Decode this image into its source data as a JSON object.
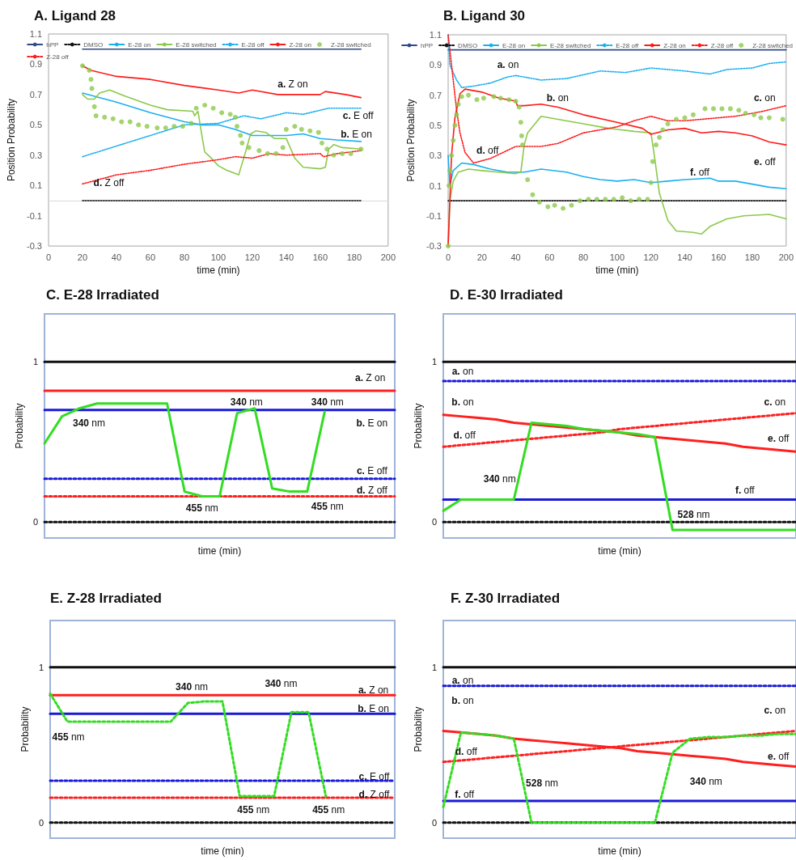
{
  "chart_data": [
    {
      "type": "line",
      "title": "A. Ligand 28",
      "xlabel": "time (min)",
      "ylabel": "Position Probability",
      "xlim": [
        0,
        200
      ],
      "xticks": [
        0,
        20,
        40,
        60,
        80,
        100,
        120,
        140,
        160,
        180,
        200
      ],
      "ylim": [
        -0.3,
        1.1
      ],
      "yticks": [
        -0.3,
        -0.1,
        0.1,
        0.3,
        0.5,
        0.7,
        0.9,
        1.1
      ],
      "legend": "top",
      "series": [
        {
          "name": "hPP",
          "color": "#2e4a87",
          "line_style": "solid",
          "x": [
            20,
            184
          ],
          "values": [
            1.0,
            1.0
          ]
        },
        {
          "name": "DMSO",
          "color": "#111111",
          "line_style": "dotted",
          "x": [
            20,
            184
          ],
          "values": [
            0,
            0
          ]
        },
        {
          "name": "E-28 on",
          "color": "#1ab0f0",
          "line_style": "solid",
          "x": [
            20,
            40,
            60,
            80,
            90,
            100,
            110,
            120,
            140,
            150,
            160,
            170,
            184
          ],
          "values": [
            0.71,
            0.65,
            0.58,
            0.52,
            0.5,
            0.5,
            0.47,
            0.43,
            0.43,
            0.44,
            0.41,
            0.4,
            0.39
          ]
        },
        {
          "name": "E-28 switched",
          "color": "#8cc94a",
          "line_style": "solid",
          "x": [
            20,
            23,
            27,
            30,
            36,
            45,
            60,
            70,
            85,
            86,
            88,
            90,
            92,
            95,
            100,
            105,
            112,
            116,
            119,
            122,
            128,
            133,
            140,
            145,
            150,
            160,
            163,
            165,
            168,
            173,
            184
          ],
          "values": [
            0.7,
            0.67,
            0.67,
            0.71,
            0.73,
            0.69,
            0.63,
            0.6,
            0.59,
            0.56,
            0.59,
            0.45,
            0.32,
            0.29,
            0.23,
            0.2,
            0.17,
            0.32,
            0.44,
            0.46,
            0.45,
            0.41,
            0.41,
            0.28,
            0.22,
            0.21,
            0.22,
            0.34,
            0.37,
            0.35,
            0.34
          ]
        },
        {
          "name": "E-28 off",
          "color": "#1ab0f0",
          "line_style": "dotted",
          "x": [
            20,
            40,
            60,
            80,
            100,
            115,
            125,
            140,
            150,
            165,
            184
          ],
          "values": [
            0.29,
            0.36,
            0.43,
            0.5,
            0.51,
            0.56,
            0.54,
            0.58,
            0.57,
            0.61,
            0.61
          ]
        },
        {
          "name": "Z-28 on",
          "color": "#ff1a1a",
          "line_style": "solid",
          "x": [
            20,
            25,
            40,
            60,
            80,
            100,
            112,
            120,
            135,
            160,
            163,
            175,
            184
          ],
          "values": [
            0.89,
            0.86,
            0.82,
            0.8,
            0.76,
            0.73,
            0.71,
            0.73,
            0.7,
            0.7,
            0.72,
            0.7,
            0.68
          ]
        },
        {
          "name": "Z-28 switched",
          "color": "#8cc94a",
          "type": "scatter",
          "marker": "circle",
          "x": [
            20,
            24,
            25,
            25.5,
            27,
            28,
            33,
            38,
            43,
            48,
            53,
            58,
            64,
            69,
            74,
            79,
            84,
            87,
            92,
            97,
            102,
            107,
            110,
            111,
            113,
            114,
            118,
            124,
            129,
            134,
            138,
            140,
            145,
            149,
            154,
            159,
            161,
            164,
            168,
            173,
            178,
            184
          ],
          "values": [
            0.89,
            0.86,
            0.8,
            0.74,
            0.62,
            0.56,
            0.55,
            0.54,
            0.52,
            0.52,
            0.5,
            0.49,
            0.48,
            0.48,
            0.49,
            0.49,
            0.51,
            0.61,
            0.63,
            0.61,
            0.58,
            0.57,
            0.55,
            0.49,
            0.43,
            0.38,
            0.35,
            0.33,
            0.31,
            0.31,
            0.35,
            0.47,
            0.49,
            0.47,
            0.46,
            0.45,
            0.38,
            0.34,
            0.3,
            0.31,
            0.31,
            0.34
          ]
        },
        {
          "name": "Z-28 off",
          "color": "#ff1a1a",
          "line_style": "dotted",
          "x": [
            20,
            40,
            60,
            80,
            100,
            110,
            120,
            130,
            140,
            160,
            162,
            170,
            184
          ],
          "values": [
            0.11,
            0.17,
            0.2,
            0.24,
            0.27,
            0.29,
            0.28,
            0.31,
            0.3,
            0.31,
            0.29,
            0.31,
            0.33
          ]
        }
      ],
      "annotations": [
        "a. Z on",
        "c. E off",
        "b. E on",
        "d. Z off"
      ]
    },
    {
      "type": "line",
      "title": "B. Ligand 30",
      "xlabel": "time (min)",
      "ylabel": "Position Probability",
      "xlim": [
        0,
        200
      ],
      "xticks": [
        0,
        20,
        40,
        60,
        80,
        100,
        120,
        140,
        160,
        180,
        200
      ],
      "ylim": [
        -0.3,
        1.1
      ],
      "yticks": [
        -0.3,
        -0.1,
        0.1,
        0.3,
        0.5,
        0.7,
        0.9,
        1.1
      ],
      "legend": "top",
      "series": [
        {
          "name": "hPP",
          "color": "#2e4a87",
          "line_style": "solid",
          "x": [
            0,
            200
          ],
          "values": [
            1.0,
            1.0
          ]
        },
        {
          "name": "DMSO",
          "color": "#111111",
          "line_style": "dotted",
          "x": [
            0,
            200
          ],
          "values": [
            0,
            0
          ]
        },
        {
          "name": "E-28 on",
          "color": "#1ab0f0",
          "line_style": "solid",
          "x": [
            0,
            1,
            3,
            8,
            15,
            25,
            35,
            45,
            55,
            70,
            80,
            90,
            100,
            110,
            120,
            130,
            140,
            155,
            160,
            170,
            180,
            190,
            200
          ],
          "values": [
            0.3,
            0.1,
            0.2,
            0.25,
            0.24,
            0.21,
            0.19,
            0.19,
            0.21,
            0.19,
            0.16,
            0.14,
            0.13,
            0.14,
            0.12,
            0.13,
            0.14,
            0.15,
            0.13,
            0.13,
            0.11,
            0.09,
            0.08
          ]
        },
        {
          "name": "E-28 switched",
          "color": "#8cc94a",
          "line_style": "solid",
          "x": [
            0,
            1,
            3,
            6,
            12,
            20,
            30,
            40,
            43,
            45,
            47,
            55,
            65,
            80,
            95,
            110,
            120,
            122,
            125,
            130,
            135,
            145,
            150,
            155,
            165,
            175,
            190,
            200
          ],
          "values": [
            -0.3,
            0,
            0.13,
            0.19,
            0.21,
            0.2,
            0.19,
            0.18,
            0.19,
            0.37,
            0.45,
            0.56,
            0.54,
            0.51,
            0.48,
            0.46,
            0.45,
            0.3,
            0.05,
            -0.13,
            -0.2,
            -0.21,
            -0.22,
            -0.17,
            -0.12,
            -0.1,
            -0.09,
            -0.12
          ]
        },
        {
          "name": "E-28 off",
          "color": "#1ab0f0",
          "line_style": "dotted",
          "x": [
            0,
            1,
            5,
            8,
            15,
            25,
            35,
            40,
            55,
            70,
            90,
            105,
            120,
            140,
            155,
            165,
            180,
            190,
            200
          ],
          "values": [
            1.1,
            0.9,
            0.8,
            0.75,
            0.76,
            0.78,
            0.82,
            0.83,
            0.8,
            0.81,
            0.86,
            0.85,
            0.88,
            0.86,
            0.84,
            0.87,
            0.88,
            0.91,
            0.92
          ]
        },
        {
          "name": "Z-28 on",
          "color": "#ff1a1a",
          "line_style": "solid",
          "x": [
            0,
            2,
            4,
            7,
            10,
            20,
            30,
            40,
            41,
            45,
            55,
            65,
            80,
            100,
            115,
            120,
            130,
            140,
            150,
            160,
            170,
            180,
            190,
            200
          ],
          "values": [
            -0.3,
            0.3,
            0.55,
            0.71,
            0.74,
            0.72,
            0.68,
            0.66,
            0.63,
            0.63,
            0.64,
            0.62,
            0.57,
            0.52,
            0.48,
            0.44,
            0.47,
            0.48,
            0.45,
            0.46,
            0.45,
            0.43,
            0.39,
            0.37
          ]
        },
        {
          "name": "Z-28 off",
          "color": "#ff1a1a",
          "line_style": "dotted",
          "x": [
            0,
            2,
            5,
            7,
            10,
            15,
            25,
            40,
            55,
            65,
            80,
            100,
            110,
            120,
            130,
            140,
            160,
            170,
            185,
            200
          ],
          "values": [
            1.1,
            0.9,
            0.6,
            0.45,
            0.32,
            0.25,
            0.28,
            0.36,
            0.36,
            0.38,
            0.45,
            0.49,
            0.53,
            0.56,
            0.53,
            0.53,
            0.55,
            0.56,
            0.59,
            0.63
          ]
        },
        {
          "name": "Z-28 switched",
          "color": "#8cc94a",
          "type": "scatter",
          "marker": "circle",
          "x": [
            0,
            0.5,
            1,
            2,
            3,
            4,
            5,
            6,
            8,
            12,
            17,
            21,
            27,
            31,
            36,
            40,
            42,
            43,
            43.5,
            44,
            47,
            50,
            54,
            59,
            63,
            68,
            73,
            78,
            83,
            88,
            93,
            98,
            103,
            108,
            113,
            118,
            120,
            121,
            123,
            125,
            127,
            130,
            135,
            140,
            145,
            152,
            157,
            162,
            167,
            172,
            176,
            181,
            185,
            190,
            198
          ],
          "values": [
            -0.3,
            0.1,
            0.2,
            0.3,
            0.4,
            0.5,
            0.57,
            0.64,
            0.69,
            0.7,
            0.67,
            0.68,
            0.69,
            0.68,
            0.67,
            0.66,
            0.62,
            0.52,
            0.43,
            0.37,
            0.14,
            0.04,
            -0.01,
            -0.04,
            -0.03,
            -0.05,
            -0.03,
            0,
            0.01,
            0.01,
            0.01,
            0.01,
            0.02,
            0,
            0.01,
            0.01,
            0.12,
            0.26,
            0.37,
            0.42,
            0.47,
            0.51,
            0.54,
            0.55,
            0.57,
            0.61,
            0.61,
            0.61,
            0.61,
            0.6,
            0.58,
            0.57,
            0.55,
            0.55,
            0.54
          ]
        }
      ],
      "annotations": [
        "a. on",
        "b. on",
        "c. on",
        "d. off",
        "e. off",
        "f. off"
      ]
    },
    {
      "type": "line",
      "title": "C. E-28 Irradiated",
      "xlabel": "time (min)",
      "ylabel": "Probability",
      "categories": [
        null,
        null,
        null,
        null,
        null,
        null,
        null,
        null,
        null,
        null,
        null,
        null,
        null,
        null,
        null,
        null,
        null,
        null,
        null,
        null,
        null
      ],
      "ylim": [
        -0.1,
        1.3
      ],
      "yticks": [
        0,
        1
      ],
      "tick_labels": "y",
      "series": [
        {
          "color": "#111111",
          "line_style": "solid",
          "values": [
            1,
            1,
            1,
            1,
            1,
            1,
            1,
            1,
            1,
            1,
            1,
            1,
            1,
            1,
            1,
            1,
            1,
            1,
            1,
            1,
            1
          ]
        },
        {
          "color": "#ff1f1f",
          "line_style": "solid",
          "values": [
            0.82,
            0.82,
            0.82,
            0.82,
            0.82,
            0.82,
            0.82,
            0.82,
            0.82,
            0.82,
            0.82,
            0.82,
            0.82,
            0.82,
            0.82,
            0.82,
            0.82,
            0.82,
            0.82,
            0.82,
            0.82
          ]
        },
        {
          "color": "#1a1ad9",
          "line_style": "solid",
          "values": [
            0.7,
            0.7,
            0.7,
            0.7,
            0.7,
            0.7,
            0.7,
            0.7,
            0.7,
            0.7,
            0.7,
            0.7,
            0.7,
            0.7,
            0.7,
            0.7,
            0.7,
            0.7,
            0.7,
            0.7,
            0.7
          ]
        },
        {
          "color": "#1a1ad9",
          "line_style": "dotted",
          "values": [
            0.27,
            0.27,
            0.27,
            0.27,
            0.27,
            0.27,
            0.27,
            0.27,
            0.27,
            0.27,
            0.27,
            0.27,
            0.27,
            0.27,
            0.27,
            0.27,
            0.27,
            0.27,
            0.27,
            0.27,
            0.27
          ]
        },
        {
          "color": "#ff1f1f",
          "line_style": "dotted",
          "values": [
            0.16,
            0.16,
            0.16,
            0.16,
            0.16,
            0.16,
            0.16,
            0.16,
            0.16,
            0.16,
            0.16,
            0.16,
            0.16,
            0.16,
            0.16,
            0.16,
            0.16,
            0.16,
            0.16,
            0.16,
            0.16
          ]
        },
        {
          "color": "#111111",
          "line_style": "dotted",
          "values": [
            0,
            0,
            0,
            0,
            0,
            0,
            0,
            0,
            0,
            0,
            0,
            0,
            0,
            0,
            0,
            0,
            0,
            0,
            0,
            0,
            0
          ]
        },
        {
          "color": "#33dd22",
          "line_style": "solid",
          "values": [
            0.49,
            0.66,
            0.71,
            0.74,
            0.74,
            0.74,
            0.74,
            0.74,
            0.19,
            0.16,
            0.16,
            0.68,
            0.71,
            0.21,
            0.19,
            0.19,
            0.69,
            null,
            null,
            null,
            null
          ]
        }
      ],
      "annotations": [
        "340 nm",
        "340 nm",
        "340 nm",
        "455 nm",
        "455 nm",
        "a. Z on",
        "b. E on",
        "c. E off",
        "d. Z off"
      ]
    },
    {
      "type": "line",
      "title": "D. E-30 Irradiated",
      "xlabel": "time (min)",
      "ylabel": "Probability",
      "categories": [
        null,
        null,
        null,
        null,
        null,
        null,
        null,
        null,
        null,
        null,
        null,
        null,
        null,
        null,
        null,
        null,
        null,
        null,
        null,
        null,
        null
      ],
      "ylim": [
        -0.1,
        1.3
      ],
      "yticks": [
        0,
        1
      ],
      "tick_labels": "y",
      "series": [
        {
          "color": "#111111",
          "line_style": "solid",
          "values": [
            1,
            1,
            1,
            1,
            1,
            1,
            1,
            1,
            1,
            1,
            1,
            1,
            1,
            1,
            1,
            1,
            1,
            1,
            1,
            1,
            1
          ]
        },
        {
          "color": "#1a1ad9",
          "line_style": "dotted",
          "values": [
            0.88,
            0.88,
            0.88,
            0.88,
            0.88,
            0.88,
            0.88,
            0.88,
            0.88,
            0.88,
            0.88,
            0.88,
            0.88,
            0.88,
            0.88,
            0.88,
            0.88,
            0.88,
            0.88,
            0.88,
            0.88
          ]
        },
        {
          "color": "#ff1f1f",
          "line_style": "solid",
          "values": [
            0.67,
            0.66,
            0.65,
            0.64,
            0.62,
            0.61,
            0.6,
            0.59,
            0.58,
            0.57,
            0.56,
            0.54,
            0.53,
            0.52,
            0.51,
            0.5,
            0.49,
            0.47,
            0.46,
            0.45,
            0.44
          ]
        },
        {
          "color": "#ff1f1f",
          "line_style": "dotted",
          "values": [
            0.47,
            0.48,
            0.49,
            0.5,
            0.51,
            0.52,
            0.53,
            0.54,
            0.55,
            0.56,
            0.58,
            0.59,
            0.6,
            0.61,
            0.62,
            0.63,
            0.64,
            0.65,
            0.66,
            0.67,
            0.68
          ]
        },
        {
          "color": "#1a1ad9",
          "line_style": "solid",
          "values": [
            0.14,
            0.14,
            0.14,
            0.14,
            0.14,
            0.14,
            0.14,
            0.14,
            0.14,
            0.14,
            0.14,
            0.14,
            0.14,
            0.14,
            0.14,
            0.14,
            0.14,
            0.14,
            0.14,
            0.14,
            0.14
          ]
        },
        {
          "color": "#111111",
          "line_style": "dotted",
          "values": [
            0,
            0,
            0,
            0,
            0,
            0,
            0,
            0,
            0,
            0,
            0,
            0,
            0,
            0,
            0,
            0,
            0,
            0,
            0,
            0,
            0
          ]
        },
        {
          "color": "#33dd22",
          "line_style": "solid",
          "values": [
            0.07,
            0.14,
            0.14,
            0.14,
            0.14,
            0.62,
            0.61,
            0.6,
            0.58,
            0.57,
            0.56,
            0.55,
            0.53,
            -0.05,
            -0.05,
            -0.05,
            -0.05,
            -0.05,
            -0.05,
            -0.05,
            -0.05
          ]
        }
      ],
      "annotations": [
        "a. on",
        "b. on",
        "c. on",
        "d. off",
        "e. off",
        "f. off",
        "340 nm",
        "528 nm"
      ]
    },
    {
      "type": "line",
      "title": "E. Z-28 Irradiated",
      "xlabel": "time (min)",
      "ylabel": "Probability",
      "categories": [
        null,
        null,
        null,
        null,
        null,
        null,
        null,
        null,
        null,
        null,
        null,
        null,
        null,
        null,
        null,
        null,
        null,
        null,
        null,
        null,
        null
      ],
      "ylim": [
        -0.1,
        1.3
      ],
      "yticks": [
        0,
        1
      ],
      "tick_labels": "y",
      "series": [
        {
          "color": "#111111",
          "line_style": "solid",
          "values": [
            1,
            1,
            1,
            1,
            1,
            1,
            1,
            1,
            1,
            1,
            1,
            1,
            1,
            1,
            1,
            1,
            1,
            1,
            1,
            1,
            1
          ]
        },
        {
          "color": "#ff1f1f",
          "line_style": "solid",
          "values": [
            0.82,
            0.82,
            0.82,
            0.82,
            0.82,
            0.82,
            0.82,
            0.82,
            0.82,
            0.82,
            0.82,
            0.82,
            0.82,
            0.82,
            0.82,
            0.82,
            0.82,
            0.82,
            0.82,
            0.82,
            0.82
          ]
        },
        {
          "color": "#1a1ad9",
          "line_style": "solid",
          "values": [
            0.7,
            0.7,
            0.7,
            0.7,
            0.7,
            0.7,
            0.7,
            0.7,
            0.7,
            0.7,
            0.7,
            0.7,
            0.7,
            0.7,
            0.7,
            0.7,
            0.7,
            0.7,
            0.7,
            0.7,
            0.7
          ]
        },
        {
          "color": "#1a1ad9",
          "line_style": "dotted",
          "values": [
            0.27,
            0.27,
            0.27,
            0.27,
            0.27,
            0.27,
            0.27,
            0.27,
            0.27,
            0.27,
            0.27,
            0.27,
            0.27,
            0.27,
            0.27,
            0.27,
            0.27,
            0.27,
            0.27,
            0.27,
            0.27
          ]
        },
        {
          "color": "#ff1f1f",
          "line_style": "dotted",
          "values": [
            0.16,
            0.16,
            0.16,
            0.16,
            0.16,
            0.16,
            0.16,
            0.16,
            0.16,
            0.16,
            0.16,
            0.16,
            0.16,
            0.16,
            0.16,
            0.16,
            0.16,
            0.16,
            0.16,
            0.16,
            0.16
          ]
        },
        {
          "color": "#111111",
          "line_style": "dotted",
          "values": [
            0,
            0,
            0,
            0,
            0,
            0,
            0,
            0,
            0,
            0,
            0,
            0,
            0,
            0,
            0,
            0,
            0,
            0,
            0,
            0,
            0
          ]
        },
        {
          "color": "#33dd22",
          "line_style": "dotted",
          "values": [
            0.83,
            0.65,
            0.65,
            0.65,
            0.65,
            0.65,
            0.65,
            0.65,
            0.77,
            0.78,
            0.78,
            0.17,
            0.17,
            0.17,
            0.71,
            0.71,
            0.17,
            null,
            null,
            null,
            null
          ]
        }
      ],
      "annotations": [
        "340 nm",
        "340 nm",
        "455 nm",
        "455 nm",
        "455 nm",
        "a. Z on",
        "b. E on",
        "c. E off",
        "d. Z off"
      ]
    },
    {
      "type": "line",
      "title": "F. Z-30 Irradiated",
      "xlabel": "time (min)",
      "ylabel": "Probability",
      "categories": [
        null,
        null,
        null,
        null,
        null,
        null,
        null,
        null,
        null,
        null,
        null,
        null,
        null,
        null,
        null,
        null,
        null,
        null,
        null,
        null,
        null
      ],
      "ylim": [
        -0.1,
        1.3
      ],
      "yticks": [
        0,
        1
      ],
      "tick_labels": "y",
      "series": [
        {
          "color": "#111111",
          "line_style": "solid",
          "values": [
            1,
            1,
            1,
            1,
            1,
            1,
            1,
            1,
            1,
            1,
            1,
            1,
            1,
            1,
            1,
            1,
            1,
            1,
            1,
            1,
            1
          ]
        },
        {
          "color": "#1a1ad9",
          "line_style": "dotted",
          "values": [
            0.88,
            0.88,
            0.88,
            0.88,
            0.88,
            0.88,
            0.88,
            0.88,
            0.88,
            0.88,
            0.88,
            0.88,
            0.88,
            0.88,
            0.88,
            0.88,
            0.88,
            0.88,
            0.88,
            0.88,
            0.88
          ]
        },
        {
          "color": "#ff1f1f",
          "line_style": "solid",
          "values": [
            0.59,
            0.58,
            0.57,
            0.56,
            0.54,
            0.53,
            0.52,
            0.51,
            0.5,
            0.49,
            0.48,
            0.46,
            0.45,
            0.44,
            0.43,
            0.42,
            0.41,
            0.39,
            0.38,
            0.37,
            0.36
          ]
        },
        {
          "color": "#ff1f1f",
          "line_style": "dotted",
          "values": [
            0.39,
            0.4,
            0.41,
            0.42,
            0.43,
            0.44,
            0.45,
            0.46,
            0.47,
            0.48,
            0.49,
            0.5,
            0.51,
            0.52,
            0.53,
            0.54,
            0.55,
            0.56,
            0.57,
            0.58,
            0.59
          ]
        },
        {
          "color": "#1a1ad9",
          "line_style": "solid",
          "values": [
            0.14,
            0.14,
            0.14,
            0.14,
            0.14,
            0.14,
            0.14,
            0.14,
            0.14,
            0.14,
            0.14,
            0.14,
            0.14,
            0.14,
            0.14,
            0.14,
            0.14,
            0.14,
            0.14,
            0.14,
            0.14
          ]
        },
        {
          "color": "#111111",
          "line_style": "dotted",
          "values": [
            0,
            0,
            0,
            0,
            0,
            0,
            0,
            0,
            0,
            0,
            0,
            0,
            0,
            0,
            0,
            0,
            0,
            0,
            0,
            0,
            0
          ]
        },
        {
          "color": "#33dd22",
          "line_style": "dotted",
          "values": [
            0.1,
            0.58,
            0.57,
            0.56,
            0.54,
            0,
            0,
            0,
            0,
            0,
            0,
            0,
            0,
            0.45,
            0.54,
            0.55,
            0.55,
            0.56,
            0.56,
            0.57,
            0.57
          ]
        }
      ],
      "annotations": [
        "a. on",
        "b. on",
        "c. on",
        "d. off",
        "e. off",
        "f. off",
        "528 nm",
        "340 nm"
      ]
    }
  ]
}
